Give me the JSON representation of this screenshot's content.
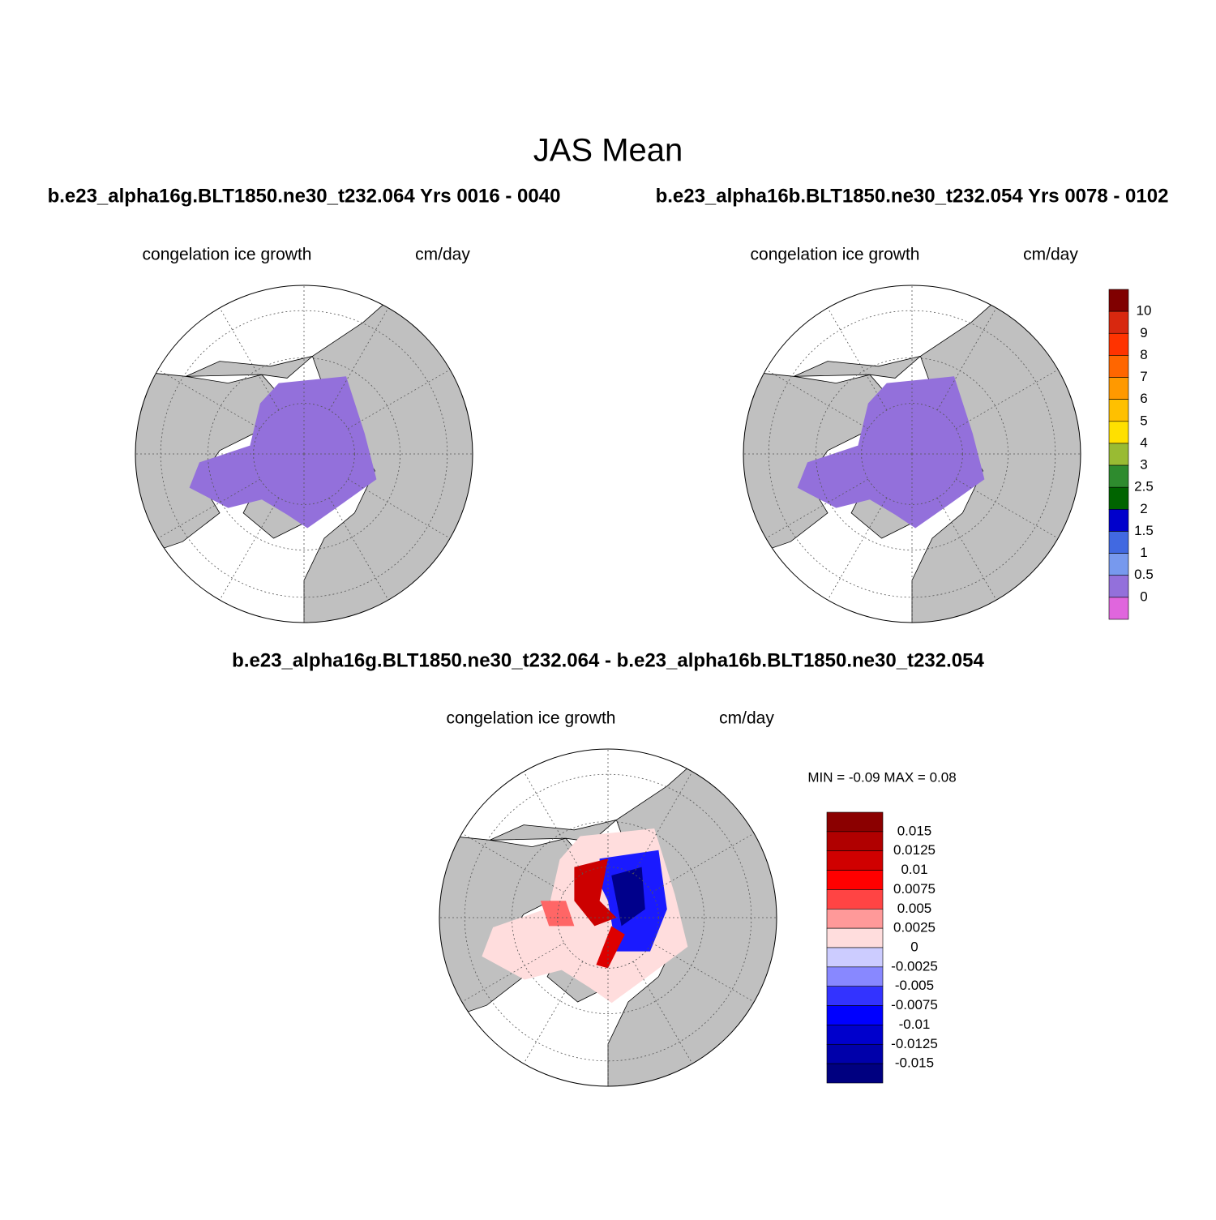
{
  "title": "JAS Mean",
  "panels": [
    {
      "heading": "b.e23_alpha16g.BLT1850.ne30_t232.064  Yrs 0016 - 0040",
      "left_label": "congelation ice growth",
      "right_label": "cm/day"
    },
    {
      "heading": "b.e23_alpha16b.BLT1850.ne30_t232.054  Yrs 0078 - 0102",
      "left_label": "congelation ice growth",
      "right_label": "cm/day"
    },
    {
      "heading": "b.e23_alpha16g.BLT1850.ne30_t232.064 - b.e23_alpha16b.BLT1850.ne30_t232.054",
      "left_label": "congelation ice growth",
      "right_label": "cm/day",
      "min_max": "MIN =  -0.09 MAX =   0.08"
    }
  ],
  "colorbars": [
    {
      "levels": [
        10,
        9,
        8,
        7,
        6,
        5,
        4,
        3,
        2.5,
        2,
        1.5,
        1,
        0.5,
        0
      ],
      "colors": [
        "#800000",
        "#d8280f",
        "#ff3300",
        "#ff6600",
        "#ff9900",
        "#ffc000",
        "#ffe000",
        "#99bb33",
        "#2e8b2e",
        "#006400",
        "#0000cc",
        "#4169e1",
        "#7799ee",
        "#9370db",
        "#e066dd"
      ]
    },
    {
      "levels": [
        0.015,
        0.0125,
        0.01,
        0.0075,
        0.005,
        0.0025,
        0,
        -0.0025,
        -0.005,
        -0.0075,
        -0.01,
        -0.0125,
        -0.015
      ],
      "colors": [
        "#8b0000",
        "#b00000",
        "#d00000",
        "#ff0000",
        "#ff4444",
        "#ff9999",
        "#ffdddd",
        "#ccccff",
        "#8888ff",
        "#3333ff",
        "#0000ff",
        "#0000cc",
        "#0000aa",
        "#000080"
      ]
    }
  ]
}
